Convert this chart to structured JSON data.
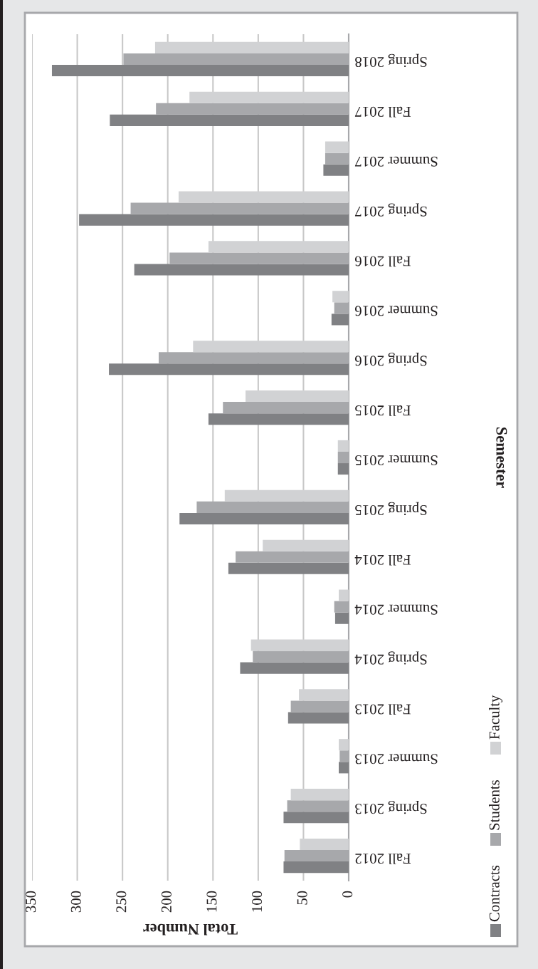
{
  "chart_data": {
    "type": "bar",
    "orientation": "horizontal",
    "xlabel": "Total Number",
    "ylabel": "Semester",
    "categories": [
      "Spring 2018",
      "Fall 2017",
      "Summer 2017",
      "Spring 2017",
      "Fall 2016",
      "Summer 2016",
      "Spring 2016",
      "Fall 2015",
      "Summer 2015",
      "Spring 2015",
      "Fall 2014",
      "Summer 2014",
      "Spring 2014",
      "Fall 2013",
      "Summer 2013",
      "Spring 2013",
      "Fall 2012"
    ],
    "series": [
      {
        "name": "Contracts",
        "color": "#808184",
        "values": [
          328,
          264,
          28,
          298,
          237,
          19,
          265,
          155,
          12,
          187,
          133,
          15,
          120,
          67,
          11,
          72,
          72
        ]
      },
      {
        "name": "Students",
        "color": "#a7a8ab",
        "values": [
          249,
          213,
          26,
          241,
          198,
          16,
          210,
          139,
          12,
          168,
          125,
          16,
          106,
          64,
          10,
          68,
          71
        ]
      },
      {
        "name": "Faculty",
        "color": "#d1d2d4",
        "values": [
          214,
          176,
          26,
          188,
          155,
          18,
          172,
          114,
          12,
          137,
          95,
          11,
          108,
          55,
          11,
          64,
          54
        ]
      }
    ],
    "xlim": [
      350,
      0
    ],
    "xticks": [
      0,
      50,
      100,
      150,
      200,
      250,
      300,
      350
    ],
    "grid": "x",
    "legend": "right"
  }
}
